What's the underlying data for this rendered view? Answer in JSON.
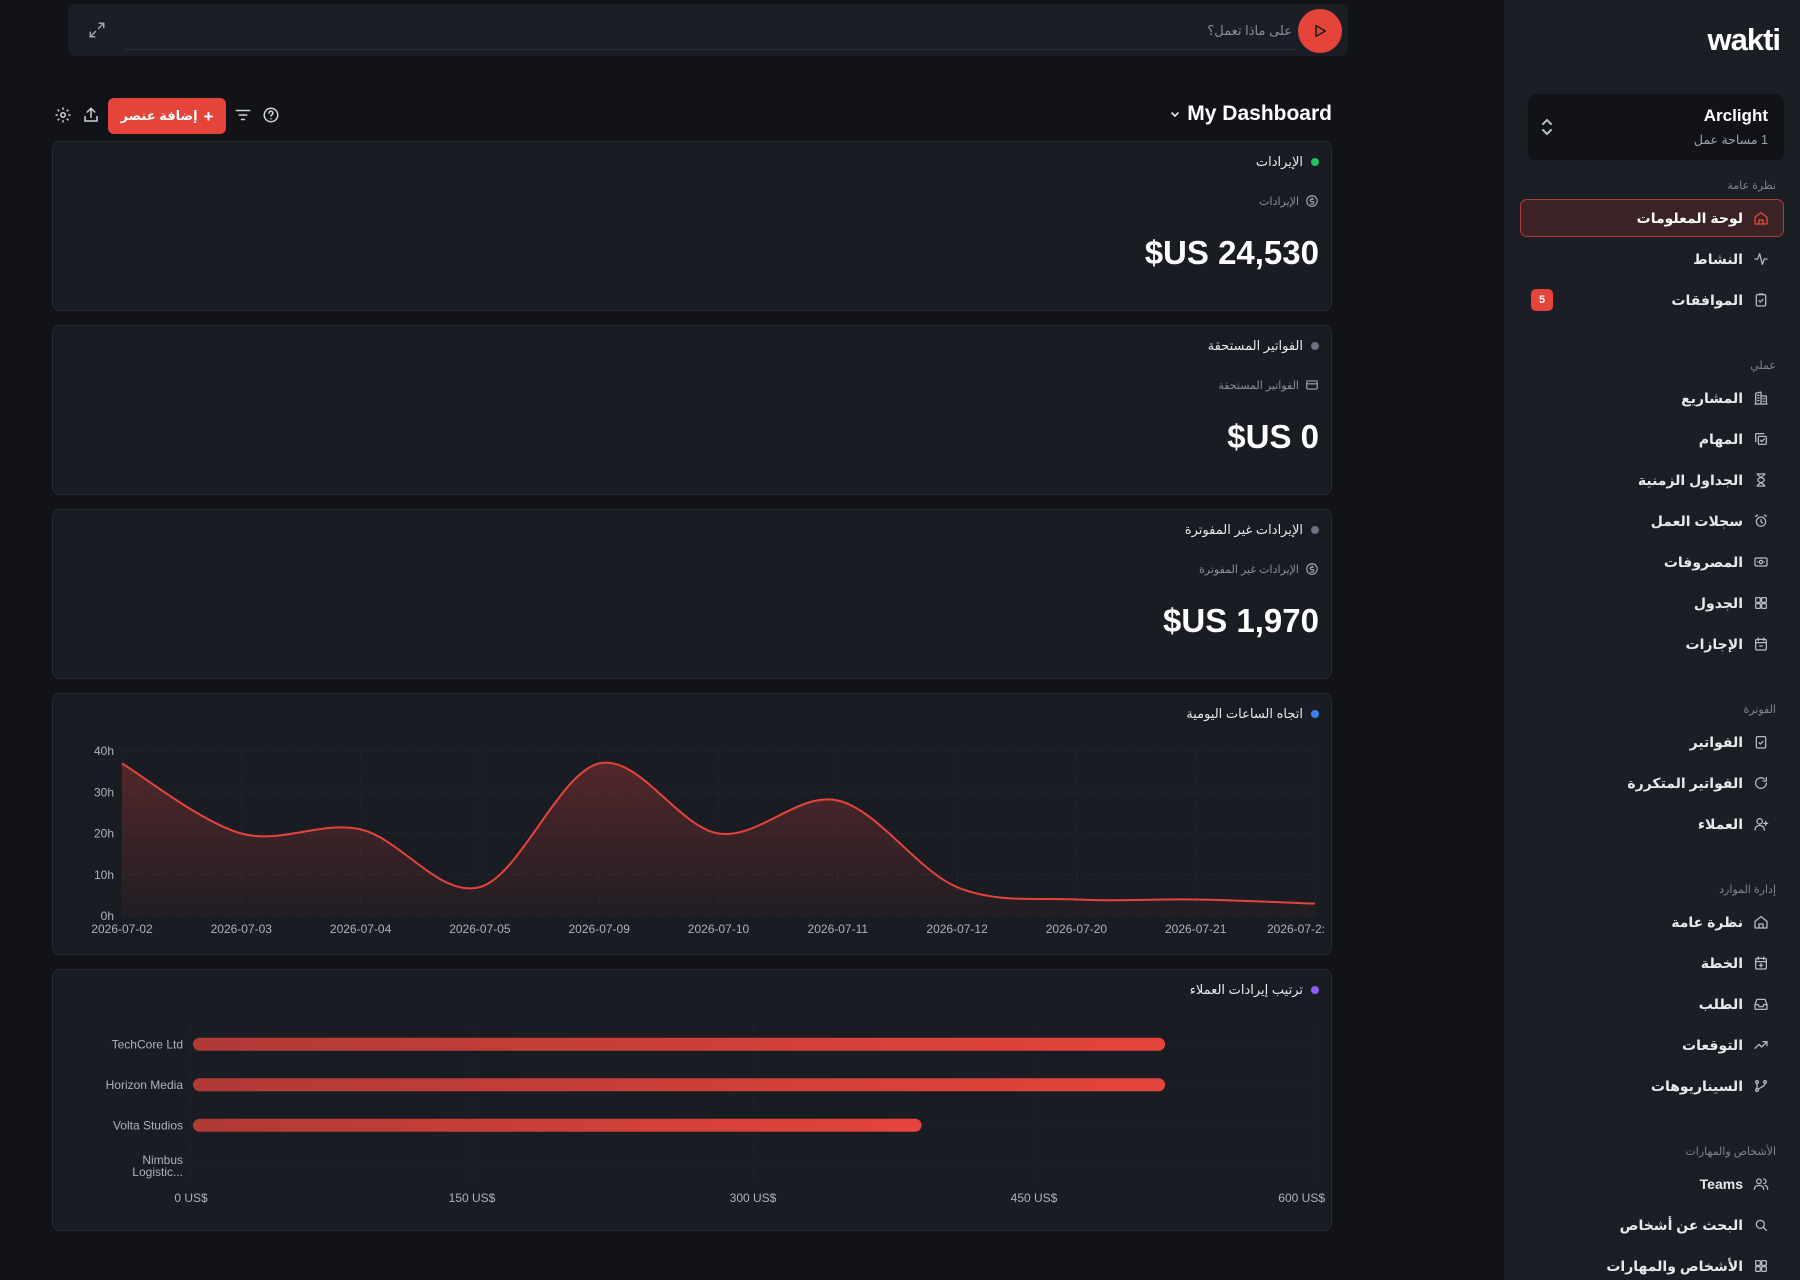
{
  "sidebar": {
    "logo": "wakti",
    "workspace": {
      "name": "Arclight",
      "sub": "1 مساحة عمل"
    },
    "sections": [
      {
        "title": "نظرة عامة",
        "items": [
          {
            "label": "لوحة المعلومات",
            "icon": "home-icon",
            "active": true
          },
          {
            "label": "النشاط",
            "icon": "activity-icon"
          },
          {
            "label": "الموافقات",
            "icon": "clipboard-check-icon",
            "badge": "5"
          }
        ]
      },
      {
        "title": "عملي",
        "items": [
          {
            "label": "المشاريع",
            "icon": "building-icon"
          },
          {
            "label": "المهام",
            "icon": "copy-check-icon"
          },
          {
            "label": "الجداول الزمنية",
            "icon": "hourglass-icon"
          },
          {
            "label": "سجلات العمل",
            "icon": "alarm-clock-icon"
          },
          {
            "label": "المصروفات",
            "icon": "banknote-icon"
          },
          {
            "label": "الجدول",
            "icon": "grid-icon"
          },
          {
            "label": "الإجازات",
            "icon": "calendar-icon"
          }
        ]
      },
      {
        "title": "الفوترة",
        "items": [
          {
            "label": "الفواتير",
            "icon": "file-check-icon"
          },
          {
            "label": "الفواتير المتكررة",
            "icon": "refresh-icon"
          },
          {
            "label": "العملاء",
            "icon": "user-plus-icon"
          }
        ]
      },
      {
        "title": "إدارة الموارد",
        "items": [
          {
            "label": "نظرة عامة",
            "icon": "home-icon"
          },
          {
            "label": "الخطة",
            "icon": "calendar-plus-icon"
          },
          {
            "label": "الطلب",
            "icon": "inbox-icon"
          },
          {
            "label": "التوقعات",
            "icon": "trending-up-icon"
          },
          {
            "label": "السيناريوهات",
            "icon": "git-branch-icon"
          }
        ]
      },
      {
        "title": "الأشخاص والمهارات",
        "items": [
          {
            "label": "Teams",
            "icon": "users-icon"
          },
          {
            "label": "البحث عن أشخاص",
            "icon": "search-icon"
          },
          {
            "label": "الأشخاص والمهارات",
            "icon": "grid-icon"
          }
        ]
      }
    ]
  },
  "prompt": {
    "placeholder": "على ماذا تعمل؟"
  },
  "toolbar": {
    "title": "My Dashboard",
    "add_label": "إضافة عنصر"
  },
  "cards": [
    {
      "title": "الإيرادات",
      "dot": "#22c55e",
      "sub": "الإيرادات",
      "icon": "dollar-circle-icon",
      "value": "24,530 US$"
    },
    {
      "title": "الفواتير المستحقة",
      "dot": "#6b7280",
      "sub": "الفواتير المستحقة",
      "icon": "credit-card-icon",
      "value": "0 US$"
    },
    {
      "title": "الإيرادات غير المفوترة",
      "dot": "#6b7280",
      "sub": "الإيرادات غير المفوترة",
      "icon": "dollar-circle-icon",
      "value": "1,970 US$"
    }
  ],
  "chart_titles": {
    "line": "اتجاه الساعات اليومية",
    "bar": "ترتيب إيرادات العملاء"
  },
  "colors": {
    "accent": "#e5443b",
    "line_dot": "#3b82f6",
    "bar_dot": "#8b5cf6"
  },
  "chart_data": [
    {
      "type": "area",
      "title": "اتجاه الساعات اليومية",
      "x": [
        "2026-07-02",
        "2026-07-03",
        "2026-07-04",
        "2026-07-05",
        "2026-07-09",
        "2026-07-10",
        "2026-07-11",
        "2026-07-12",
        "2026-07-20",
        "2026-07-21",
        "2026-07-22"
      ],
      "x_tick_labels": [
        "2026-07-02",
        "2026-07-03",
        "2026-07-04",
        "2026-07-05",
        "2026-07-09",
        "2026-07-10",
        "2026-07-11",
        "2026-07-12",
        "2026-07-20",
        "2026-07-21",
        "2026-07-2:"
      ],
      "values": [
        37,
        20,
        21,
        7,
        37,
        20,
        28,
        7,
        4,
        4,
        3
      ],
      "y_ticks": [
        "0h",
        "10h",
        "20h",
        "30h",
        "40h"
      ],
      "ylim": [
        0,
        40
      ],
      "grid": true,
      "color": "#e5443b"
    },
    {
      "type": "bar",
      "orientation": "horizontal",
      "title": "ترتيب إيرادات العملاء",
      "categories": [
        "TechCore Ltd",
        "Horizon Media",
        "Volta Studios",
        "Nimbus Logistic..."
      ],
      "values": [
        520,
        520,
        390,
        0
      ],
      "x_ticks": [
        "0 US$",
        "150 US$",
        "300 US$",
        "450 US$",
        "600 US$"
      ],
      "xlim": [
        0,
        600
      ],
      "grid": true,
      "color": "#e5443b"
    }
  ]
}
